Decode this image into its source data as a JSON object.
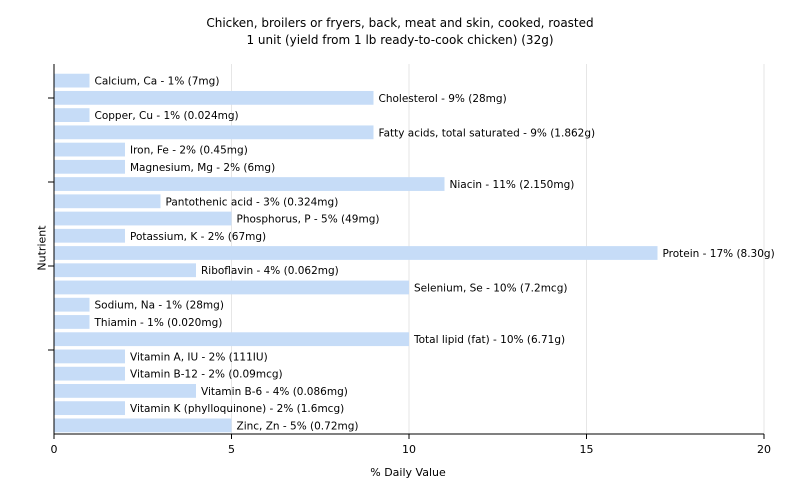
{
  "chart_data": {
    "type": "bar",
    "orientation": "horizontal",
    "title": "Chicken, broilers or fryers, back, meat and skin, cooked, roasted",
    "subtitle": "1 unit (yield from 1 lb ready-to-cook chicken) (32g)",
    "xlabel": "% Daily Value",
    "ylabel": "Nutrient",
    "xlim": [
      0,
      20
    ],
    "xticks": [
      "0",
      "5",
      "10",
      "15",
      "20"
    ],
    "grid": true,
    "bar_color": "#c6dcf7",
    "categories": [
      "Calcium, Ca",
      "Cholesterol",
      "Copper, Cu",
      "Fatty acids, total saturated",
      "Iron, Fe",
      "Magnesium, Mg",
      "Niacin",
      "Pantothenic acid",
      "Phosphorus, P",
      "Potassium, K",
      "Protein",
      "Riboflavin",
      "Selenium, Se",
      "Sodium, Na",
      "Thiamin",
      "Total lipid (fat)",
      "Vitamin A, IU",
      "Vitamin B-12",
      "Vitamin B-6",
      "Vitamin K (phylloquinone)",
      "Zinc, Zn"
    ],
    "values": [
      1,
      9,
      1,
      9,
      2,
      2,
      11,
      3,
      5,
      2,
      17,
      4,
      10,
      1,
      1,
      10,
      2,
      2,
      4,
      2,
      5
    ],
    "labels": [
      "Calcium, Ca - 1% (7mg)",
      "Cholesterol - 9% (28mg)",
      "Copper, Cu - 1% (0.024mg)",
      "Fatty acids, total saturated - 9% (1.862g)",
      "Iron, Fe - 2% (0.45mg)",
      "Magnesium, Mg - 2% (6mg)",
      "Niacin - 11% (2.150mg)",
      "Pantothenic acid - 3% (0.324mg)",
      "Phosphorus, P - 5% (49mg)",
      "Potassium, K - 2% (67mg)",
      "Protein - 17% (8.30g)",
      "Riboflavin - 4% (0.062mg)",
      "Selenium, Se - 10% (7.2mcg)",
      "Sodium, Na - 1% (28mg)",
      "Thiamin - 1% (0.020mg)",
      "Total lipid (fat) - 10% (6.71g)",
      "Vitamin A, IU - 2% (111IU)",
      "Vitamin B-12 - 2% (0.09mcg)",
      "Vitamin B-6 - 4% (0.086mg)",
      "Vitamin K (phylloquinone) - 2% (1.6mcg)",
      "Zinc, Zn - 5% (0.72mg)"
    ]
  }
}
